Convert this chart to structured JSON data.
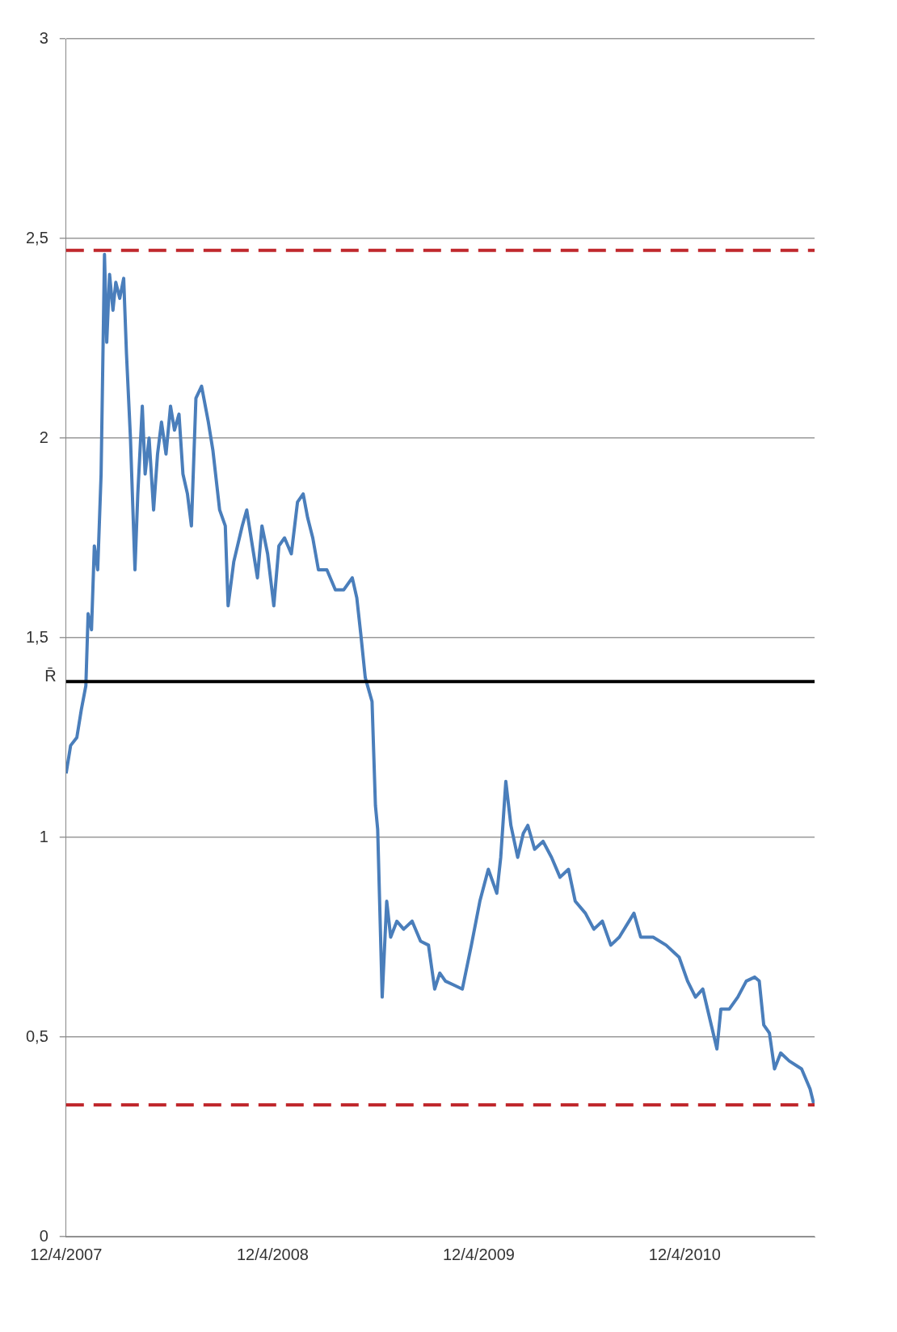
{
  "chart_data": {
    "type": "line",
    "x": [
      "2007-04-12",
      "2007-04-20",
      "2007-05-01",
      "2007-05-09",
      "2007-05-17",
      "2007-05-21",
      "2007-05-27",
      "2007-06-01",
      "2007-06-07",
      "2007-06-13",
      "2007-06-19",
      "2007-06-23",
      "2007-06-28",
      "2007-07-04",
      "2007-07-09",
      "2007-07-16",
      "2007-07-23",
      "2007-07-28",
      "2007-08-04",
      "2007-08-12",
      "2007-08-17",
      "2007-08-25",
      "2007-08-30",
      "2007-09-06",
      "2007-09-14",
      "2007-09-21",
      "2007-09-28",
      "2007-10-06",
      "2007-10-14",
      "2007-10-21",
      "2007-10-29",
      "2007-11-05",
      "2007-11-13",
      "2007-11-20",
      "2007-11-28",
      "2007-12-08",
      "2007-12-20",
      "2007-12-28",
      "2008-01-09",
      "2008-01-19",
      "2008-01-24",
      "2008-02-03",
      "2008-02-18",
      "2008-02-26",
      "2008-03-07",
      "2008-03-16",
      "2008-03-24",
      "2008-04-03",
      "2008-04-14",
      "2008-04-23",
      "2008-05-03",
      "2008-05-15",
      "2008-05-26",
      "2008-06-05",
      "2008-06-13",
      "2008-06-22",
      "2008-07-02",
      "2008-07-17",
      "2008-08-01",
      "2008-08-16",
      "2008-08-31",
      "2008-09-08",
      "2008-09-15",
      "2008-09-23",
      "2008-10-05",
      "2008-10-11",
      "2008-10-15",
      "2008-10-23",
      "2008-10-31",
      "2008-11-07",
      "2008-11-18",
      "2008-11-30",
      "2008-12-15",
      "2008-12-30",
      "2009-01-13",
      "2009-01-24",
      "2009-02-02",
      "2009-02-12",
      "2009-02-27",
      "2009-03-14",
      "2009-03-30",
      "2009-04-14",
      "2009-04-29",
      "2009-05-14",
      "2009-05-21",
      "2009-05-30",
      "2009-06-08",
      "2009-06-20",
      "2009-06-30",
      "2009-07-08",
      "2009-07-20",
      "2009-08-04",
      "2009-08-19",
      "2009-09-03",
      "2009-09-18",
      "2009-09-30",
      "2009-10-18",
      "2009-11-02",
      "2009-11-17",
      "2009-12-02",
      "2009-12-17",
      "2010-01-12",
      "2010-01-24",
      "2010-02-15",
      "2010-03-10",
      "2010-04-02",
      "2010-04-17",
      "2010-05-01",
      "2010-05-14",
      "2010-05-29",
      "2010-06-08",
      "2010-06-15",
      "2010-06-30",
      "2010-07-15",
      "2010-07-30",
      "2010-08-14",
      "2010-08-22",
      "2010-08-30",
      "2010-09-09",
      "2010-09-18",
      "2010-09-29",
      "2010-10-14",
      "2010-11-05",
      "2010-11-20",
      "2010-11-27"
    ],
    "series": [
      {
        "color": "#4a7ebb",
        "values": [
          1.16,
          1.23,
          1.25,
          1.32,
          1.38,
          1.56,
          1.52,
          1.73,
          1.67,
          1.91,
          2.46,
          2.24,
          2.41,
          2.32,
          2.39,
          2.35,
          2.4,
          2.21,
          2.0,
          1.67,
          1.86,
          2.08,
          1.91,
          2.0,
          1.82,
          1.96,
          2.04,
          1.96,
          2.08,
          2.02,
          2.06,
          1.91,
          1.86,
          1.78,
          2.1,
          2.13,
          2.04,
          1.97,
          1.82,
          1.78,
          1.58,
          1.69,
          1.78,
          1.82,
          1.73,
          1.65,
          1.78,
          1.71,
          1.58,
          1.73,
          1.75,
          1.71,
          1.84,
          1.86,
          1.8,
          1.75,
          1.67,
          1.67,
          1.62,
          1.62,
          1.65,
          1.6,
          1.51,
          1.4,
          1.34,
          1.08,
          1.02,
          0.6,
          0.84,
          0.75,
          0.79,
          0.77,
          0.79,
          0.74,
          0.73,
          0.62,
          0.66,
          0.64,
          0.63,
          0.62,
          0.73,
          0.84,
          0.92,
          0.86,
          0.95,
          1.14,
          1.03,
          0.95,
          1.01,
          1.03,
          0.97,
          0.99,
          0.95,
          0.9,
          0.92,
          0.84,
          0.81,
          0.77,
          0.79,
          0.73,
          0.75,
          0.81,
          0.75,
          0.75,
          0.73,
          0.7,
          0.64,
          0.6,
          0.62,
          0.53,
          0.47,
          0.57,
          0.57,
          0.6,
          0.64,
          0.65,
          0.64,
          0.53,
          0.51,
          0.42,
          0.46,
          0.44,
          0.42,
          0.37,
          0.33
        ]
      }
    ],
    "xlim": [
      "2007-04-12",
      "2010-11-28"
    ],
    "xticks": [
      {
        "value": "2007-04-12",
        "label": "12/4/2007"
      },
      {
        "value": "2008-04-12",
        "label": "12/4/2008"
      },
      {
        "value": "2009-04-12",
        "label": "12/4/2009"
      },
      {
        "value": "2010-04-12",
        "label": "12/4/2010"
      }
    ],
    "ylim": [
      0,
      3
    ],
    "yticks": [
      0,
      {
        "value": 0.5,
        "label": "0,5"
      },
      1,
      {
        "value": 1.5,
        "label": "1,5"
      },
      2,
      {
        "value": 2.5,
        "label": "2,5"
      },
      3
    ],
    "ref_lines": [
      {
        "axis": "y",
        "value": 2.47,
        "color": "#c0282d",
        "line_style": "dashed"
      },
      {
        "axis": "y",
        "value": 1.39,
        "label": "R̄",
        "color": "#000000",
        "line_style": "solid"
      },
      {
        "axis": "y",
        "value": 0.33,
        "color": "#c0282d",
        "line_style": "dashed"
      }
    ],
    "grid": "y",
    "legend": false,
    "marker": "none",
    "line_style": "solid"
  }
}
